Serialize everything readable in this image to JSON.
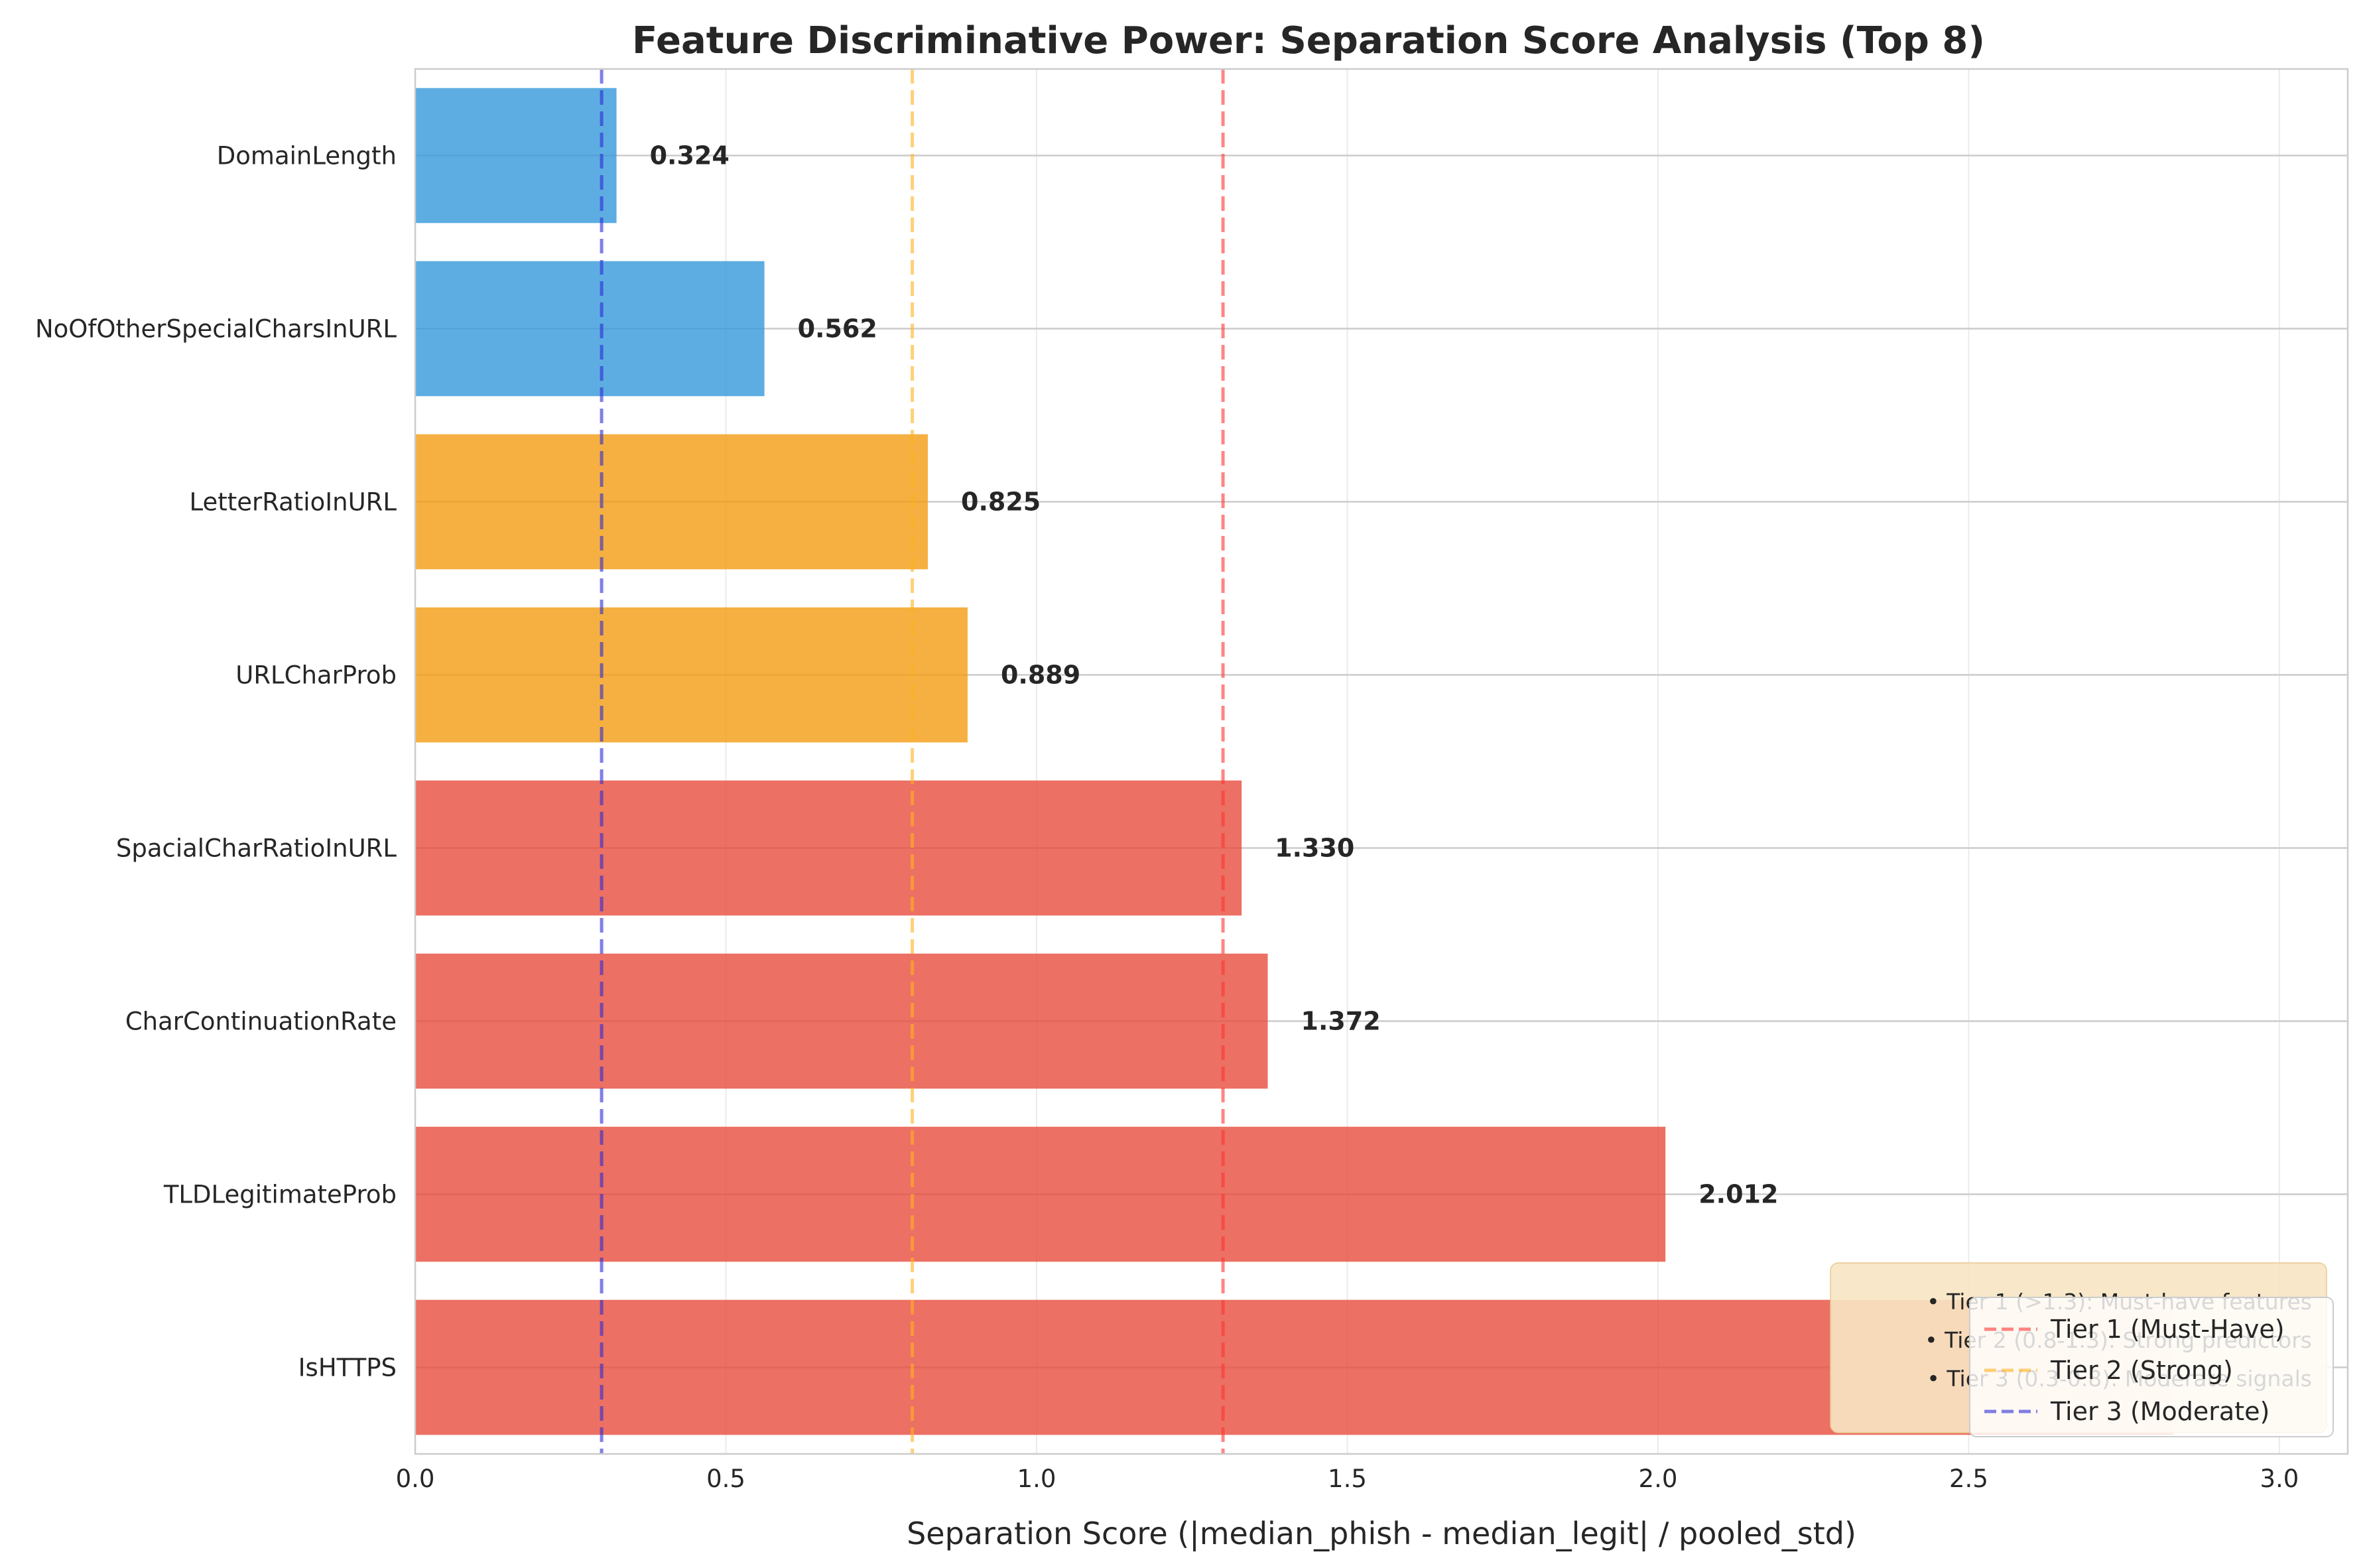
{
  "chart_data": {
    "type": "bar",
    "orientation": "horizontal",
    "title": "Feature Discriminative Power: Separation Score Analysis (Top 8)",
    "xlabel": "Separation Score (|median_phish - median_legit| / pooled_std)",
    "ylabel": "",
    "xlim": [
      0,
      3.11
    ],
    "x_ticks": [
      "0.0",
      "0.5",
      "1.0",
      "1.5",
      "2.0",
      "2.5",
      "3.0"
    ],
    "x_tick_values": [
      0,
      0.5,
      1.0,
      1.5,
      2.0,
      2.5,
      3.0
    ],
    "grid": true,
    "categories": [
      "DomainLength",
      "NoOfOtherSpecialCharsInURL",
      "LetterRatioInURL",
      "URLCharProb",
      "SpacialCharRatioInURL",
      "CharContinuationRate",
      "TLDLegitimateProb",
      "IsHTTPS"
    ],
    "values": [
      0.324,
      0.562,
      0.825,
      0.889,
      1.33,
      1.372,
      2.012,
      2.829
    ],
    "value_labels": [
      "0.324",
      "0.562",
      "0.825",
      "0.889",
      "1.330",
      "1.372",
      "2.012",
      ""
    ],
    "bar_colors": [
      "#3498db",
      "#3498db",
      "#f39c12",
      "#f39c12",
      "#e74c3c",
      "#e74c3c",
      "#e74c3c",
      "#e74c3c"
    ],
    "thresholds": [
      {
        "label": "Tier 1 (Must-Have)",
        "value": 1.3,
        "color": "#ff3333"
      },
      {
        "label": "Tier 2 (Strong)",
        "value": 0.8,
        "color": "#ffb020"
      },
      {
        "label": "Tier 3 (Moderate)",
        "value": 0.3,
        "color": "#2b2bd6"
      }
    ],
    "legend_position": "lower right",
    "annotation_lines": [
      "• Tier 1 (>1.3): Must-have features",
      "• Tier 2 (0.8-1.3): Strong predictors",
      "• Tier 3 (0.3-0.8): Moderate signals"
    ]
  }
}
